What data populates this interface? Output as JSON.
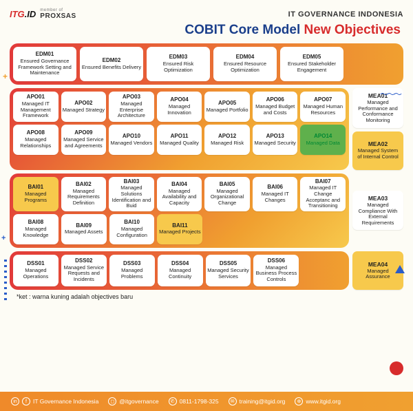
{
  "header": {
    "logo1_a": "ITG",
    "logo1_b": ".ID",
    "logo2_prefix": "member of",
    "logo2": "PROXSAS",
    "right": "IT GOVERNANCE INDONESIA"
  },
  "title": {
    "blue": "COBIT Core Model",
    "red": "New Objectives"
  },
  "colors": {
    "accent_red": "#d72c2c",
    "accent_orange": "#f0a030",
    "accent_yellow": "#f7c94c",
    "accent_green": "#5fb04c",
    "accent_blue": "#1b3f8b"
  },
  "groups": [
    {
      "id": "edm",
      "rows": [
        [
          {
            "code": "EDM01",
            "label": "Ensured Governance Framework Setting and Maintenance",
            "hl": ""
          },
          {
            "code": "EDM02",
            "label": "Ensured Benefits Delivery",
            "hl": ""
          },
          {
            "code": "EDM03",
            "label": "Ensured Risk Optimization",
            "hl": ""
          },
          {
            "code": "EDM04",
            "label": "Ensured Resource Optimization",
            "hl": ""
          },
          {
            "code": "EDM05",
            "label": "Ensured Stakeholder Engagement",
            "hl": ""
          }
        ]
      ]
    },
    {
      "id": "apo",
      "rows": [
        [
          {
            "code": "APO01",
            "label": "Managed IT Management Framework",
            "hl": ""
          },
          {
            "code": "APO02",
            "label": "Managed Strategy",
            "hl": ""
          },
          {
            "code": "APO03",
            "label": "Managed Enterprise Architecture",
            "hl": ""
          },
          {
            "code": "APO04",
            "label": "Managed Innovation",
            "hl": ""
          },
          {
            "code": "APO05",
            "label": "Managed Portfolio",
            "hl": ""
          },
          {
            "code": "APO06",
            "label": "Managed Budget and Costs",
            "hl": ""
          },
          {
            "code": "APO07",
            "label": "Managed Human Resources",
            "hl": ""
          }
        ],
        [
          {
            "code": "APO08",
            "label": "Managed Relationships",
            "hl": ""
          },
          {
            "code": "APO09",
            "label": "Managed Service and Agreements",
            "hl": ""
          },
          {
            "code": "APO10",
            "label": "Managed Vendors",
            "hl": ""
          },
          {
            "code": "APO11",
            "label": "Managed Quality",
            "hl": ""
          },
          {
            "code": "APO12",
            "label": "Managed Risk",
            "hl": ""
          },
          {
            "code": "APO13",
            "label": "Managed Security",
            "hl": ""
          },
          {
            "code": "APO14",
            "label": "Managed Data",
            "hl": "green"
          }
        ]
      ]
    },
    {
      "id": "bai",
      "rows": [
        [
          {
            "code": "BAI01",
            "label": "Managed Programs",
            "hl": "yellow"
          },
          {
            "code": "BAI02",
            "label": "Managed Requirements Definition",
            "hl": ""
          },
          {
            "code": "BAI03",
            "label": "Managed Solutions Identification and Buid",
            "hl": ""
          },
          {
            "code": "BAI04",
            "label": "Managed Availability and Capacity",
            "hl": ""
          },
          {
            "code": "BAI05",
            "label": "Managed Organizational Change",
            "hl": ""
          },
          {
            "code": "BAI06",
            "label": "Managed IT Changes",
            "hl": ""
          },
          {
            "code": "BAI07",
            "label": "Managed IT Change Acceptanc and Transitioning",
            "hl": ""
          }
        ],
        [
          {
            "code": "BAI08",
            "label": "Managed Knowledge",
            "hl": ""
          },
          {
            "code": "BAI09",
            "label": "Managed Assets",
            "hl": ""
          },
          {
            "code": "BAI10",
            "label": "Managed Configuration",
            "hl": ""
          },
          {
            "code": "BAI11",
            "label": "Managed Projects",
            "hl": "yellow"
          }
        ]
      ]
    },
    {
      "id": "dss",
      "rows": [
        [
          {
            "code": "DSS01",
            "label": "Managed Operations",
            "hl": ""
          },
          {
            "code": "DSS02",
            "label": "Managed Service Requests and Incidents",
            "hl": ""
          },
          {
            "code": "DSS03",
            "label": "Managed Problems",
            "hl": ""
          },
          {
            "code": "DSS04",
            "label": "Managed Continuity",
            "hl": ""
          },
          {
            "code": "DSS05",
            "label": "Managed Security Services",
            "hl": ""
          },
          {
            "code": "DSS06",
            "label": "Managed Business Process Controls",
            "hl": ""
          }
        ]
      ]
    }
  ],
  "mea": [
    {
      "code": "MEA01",
      "label": "Managed Performance and Conformance Monitoring",
      "hl": ""
    },
    {
      "code": "MEA02",
      "label": "Managed System of Internal Control",
      "hl": "yellow"
    },
    {
      "code": "MEA03",
      "label": "Managed Compliance With External Requirements",
      "hl": ""
    },
    {
      "code": "MEA04",
      "label": "Managed Assurance",
      "hl": "yellow"
    }
  ],
  "footnote": "*ket : warna kuning adalah objectives baru",
  "footer": {
    "linkedin": "IT Governance Indonesia",
    "instagram": "@itgovernance",
    "whatsapp": "0811-1798-325",
    "email": "training@itgid.org",
    "web": "www.itgid.org"
  }
}
